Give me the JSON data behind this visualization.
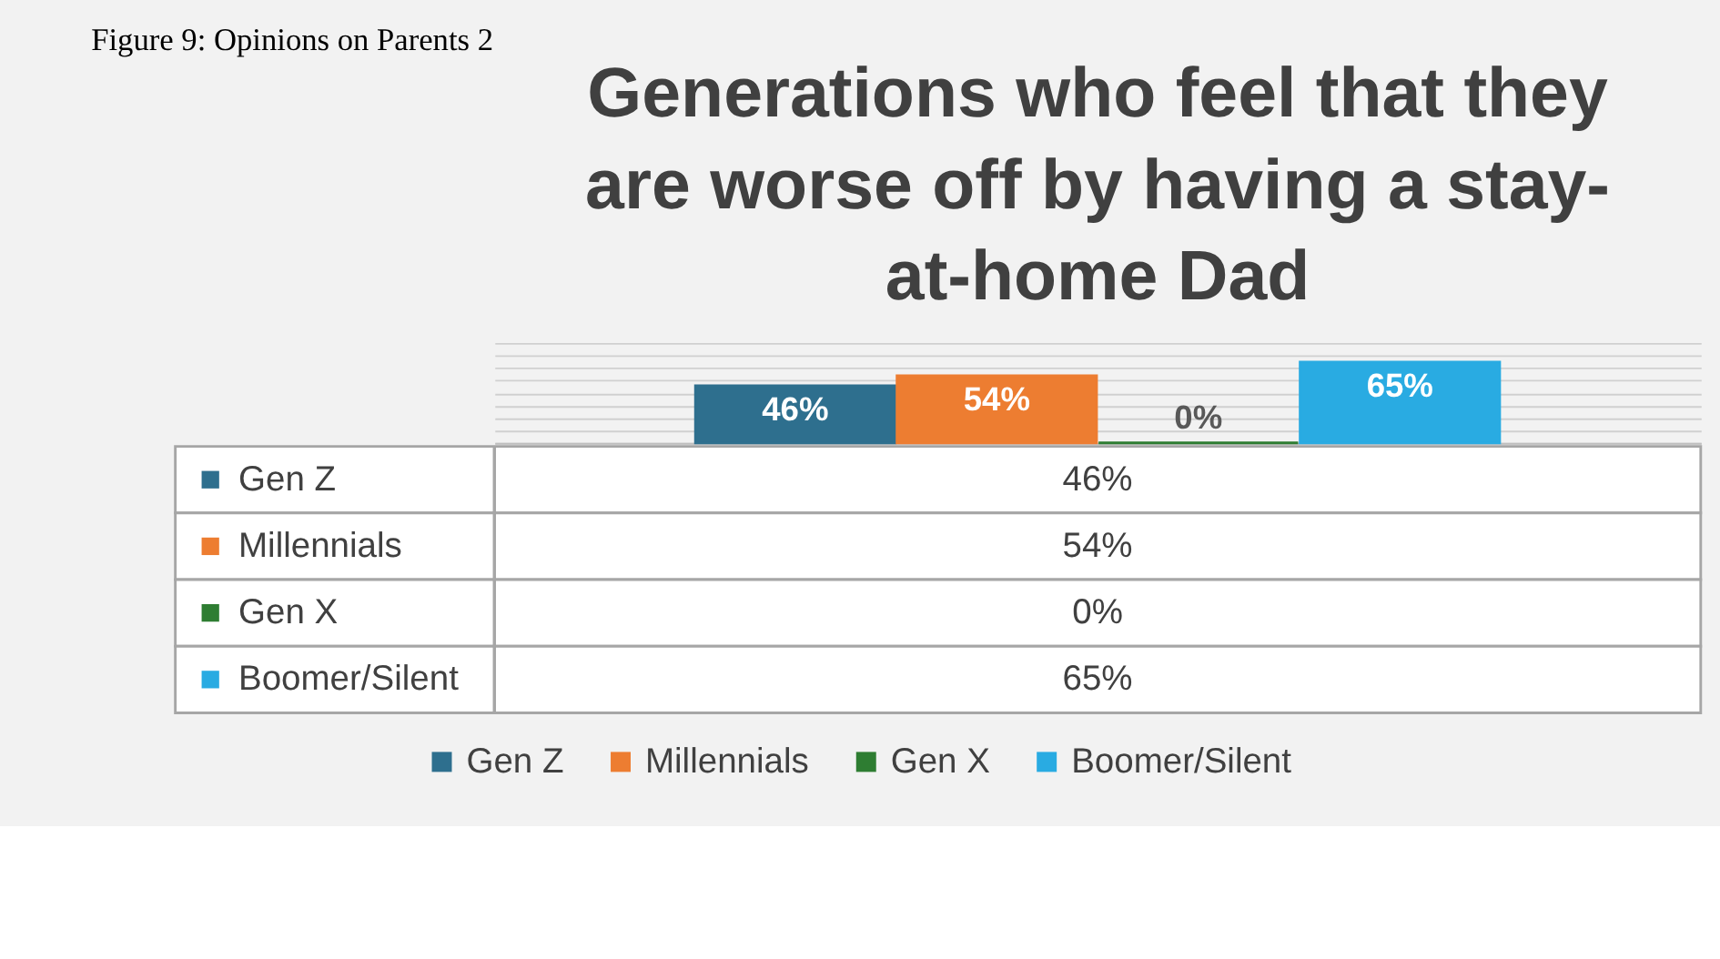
{
  "chart_data": {
    "type": "bar",
    "title": "Generations who feel that they are worse off by having a stay-at-home Dad",
    "annotations": [
      "Figure 9: Opinions on Parents 2"
    ],
    "categories": [
      null
    ],
    "series": [
      {
        "name": "Gen Z",
        "color": "#2e6f8e",
        "values": [
          46
        ],
        "value_labels": [
          "46%"
        ]
      },
      {
        "name": "Millennials",
        "color": "#ed7d31",
        "values": [
          54
        ],
        "value_labels": [
          "54%"
        ]
      },
      {
        "name": "Gen X",
        "color": "#2e7d32",
        "values": [
          0
        ],
        "value_labels": [
          "0%"
        ]
      },
      {
        "name": "Boomer/Silent",
        "color": "#29abe2",
        "values": [
          65
        ],
        "value_labels": [
          "65%"
        ]
      }
    ],
    "grid": "y",
    "legend": "bottom",
    "tick_labels": false
  }
}
